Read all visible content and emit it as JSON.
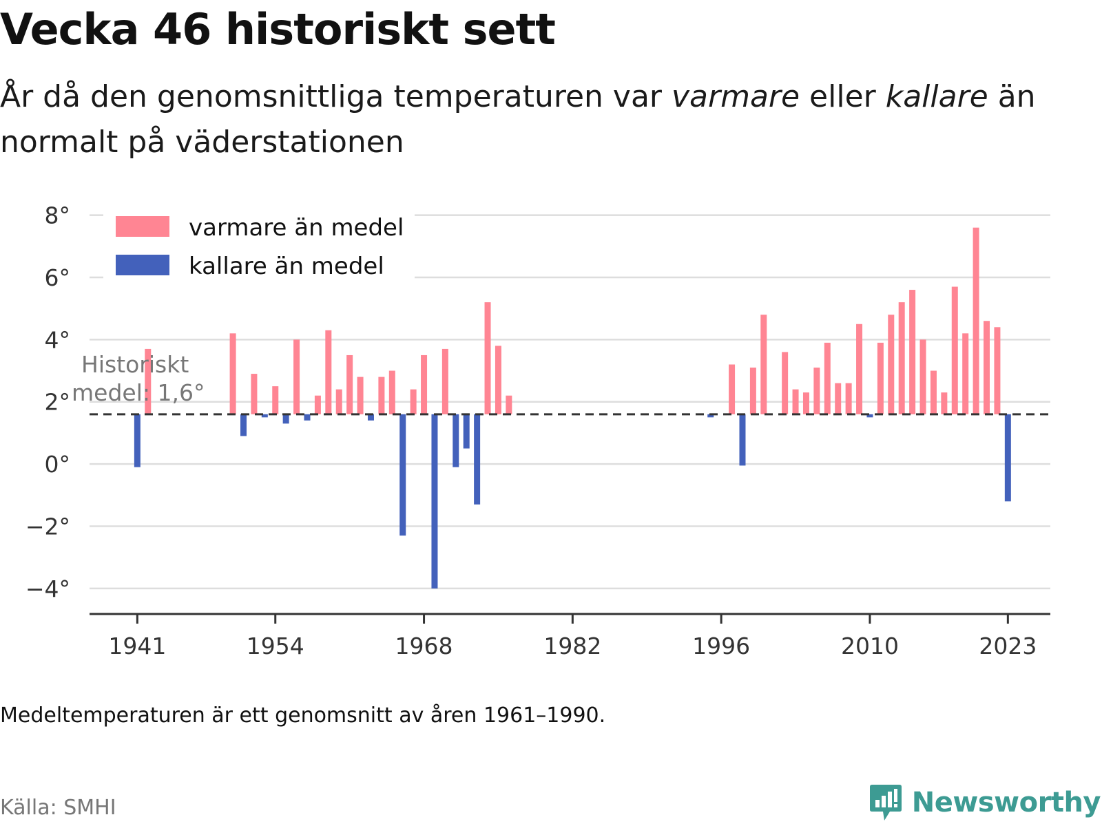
{
  "title": "Vecka 46 historiskt sett",
  "subtitle": {
    "part1": "År då den genomsnittliga temperaturen var ",
    "em1": "varmare",
    "part2": " eller ",
    "em2": "kallare",
    "part3": " än normalt på väderstationen"
  },
  "note": "Medeltemperaturen är ett genomsnitt av åren 1961–1990.",
  "source": "Källa: SMHI",
  "brand": {
    "name": "Newsworthy",
    "icon": "newsworthy-logo-icon"
  },
  "colors": {
    "warm": "#ff8593",
    "cold": "#4361bb",
    "grid": "#dddddd",
    "axis": "#333333",
    "brand": "#3d9b93"
  },
  "chart_data": {
    "type": "bar",
    "baseline": 1.6,
    "baseline_label_line1": "Historiskt",
    "baseline_label_line2": "medel: 1,6°",
    "ylim": [
      -4.6,
      8.5
    ],
    "xlim": [
      1936.5,
      2027
    ],
    "yticks": [
      -4,
      -2,
      0,
      2,
      4,
      6,
      8
    ],
    "ytick_labels": [
      "−4°",
      "−2°",
      "0°",
      "2°",
      "4°",
      "6°",
      "8°"
    ],
    "xticks": [
      1941,
      1954,
      1968,
      1982,
      1996,
      2010,
      2023
    ],
    "xtick_labels": [
      "1941",
      "1954",
      "1968",
      "1982",
      "1996",
      "2010",
      "2023"
    ],
    "legend": {
      "placement": "top-left",
      "warm_label": "varmare än medel",
      "cold_label": "kallare än medel"
    },
    "years": [
      1941,
      1942,
      1950,
      1951,
      1952,
      1953,
      1954,
      1955,
      1956,
      1957,
      1958,
      1959,
      1960,
      1961,
      1962,
      1963,
      1964,
      1965,
      1966,
      1967,
      1968,
      1969,
      1970,
      1971,
      1972,
      1973,
      1974,
      1975,
      1976,
      1995,
      1997,
      1998,
      1999,
      2000,
      2002,
      2003,
      2004,
      2005,
      2006,
      2007,
      2008,
      2009,
      2010,
      2011,
      2012,
      2013,
      2014,
      2015,
      2016,
      2017,
      2018,
      2019,
      2020,
      2021,
      2022,
      2023
    ],
    "values": [
      -0.1,
      3.7,
      4.2,
      0.9,
      2.9,
      1.5,
      2.5,
      1.3,
      4.0,
      1.4,
      2.2,
      4.3,
      2.4,
      3.5,
      2.8,
      1.4,
      2.8,
      3.0,
      -2.3,
      2.4,
      3.5,
      -4.0,
      3.7,
      -0.1,
      0.5,
      -1.3,
      5.2,
      3.8,
      2.2,
      1.5,
      3.2,
      -0.05,
      3.1,
      4.8,
      3.6,
      2.4,
      2.3,
      3.1,
      3.9,
      2.6,
      2.6,
      4.5,
      1.5,
      3.9,
      4.8,
      5.2,
      5.6,
      4.0,
      3.0,
      2.3,
      5.7,
      4.2,
      7.6,
      4.6,
      4.4,
      -1.2
    ]
  }
}
